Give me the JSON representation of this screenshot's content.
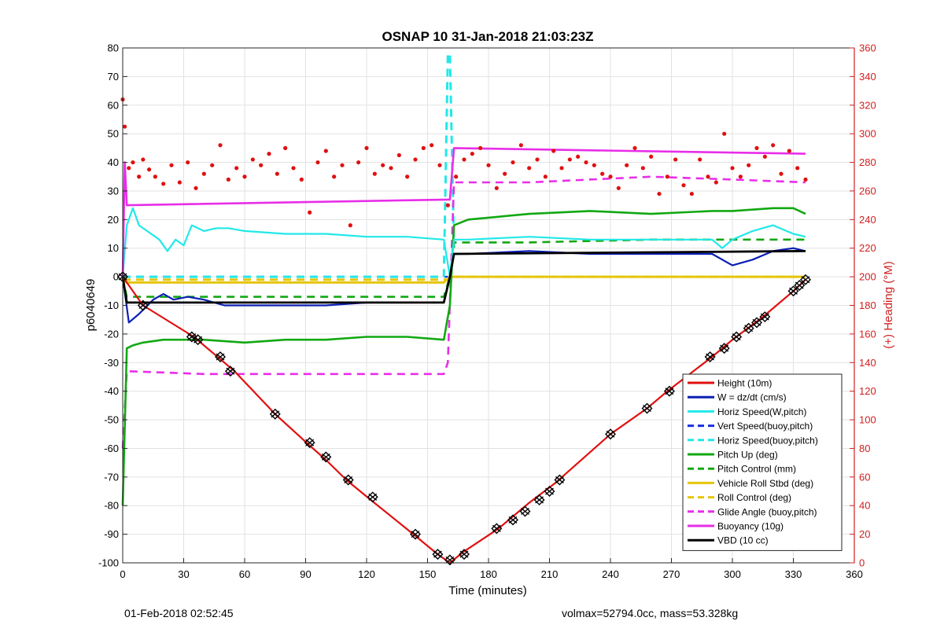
{
  "chart_data": {
    "type": "line",
    "title": "OSNAP 10 31-Jan-2018 21:03:23Z",
    "xlabel": "Time (minutes)",
    "ylabel": "p6040649",
    "y2label": "(+) Heading (°M)",
    "xlim": [
      0,
      360
    ],
    "ylim": [
      -100,
      80
    ],
    "y2lim": [
      0,
      360
    ],
    "xticks": [
      0,
      30,
      60,
      90,
      120,
      150,
      180,
      210,
      240,
      270,
      300,
      330,
      360
    ],
    "yticks": [
      -100,
      -90,
      -80,
      -70,
      -60,
      -50,
      -40,
      -30,
      -20,
      -10,
      0,
      10,
      20,
      30,
      40,
      50,
      60,
      70,
      80
    ],
    "y2ticks": [
      0,
      20,
      40,
      60,
      80,
      100,
      120,
      140,
      160,
      180,
      200,
      220,
      240,
      260,
      280,
      300,
      320,
      340,
      360
    ],
    "grid": true,
    "legend_position": "bottom-right",
    "colors": {
      "height": "#e01010",
      "w": "#0a1fb4",
      "horiz": "#22e8e8",
      "vert_dash": "#1a2ee0",
      "horiz_dash": "#22e8e8",
      "pitch": "#12a812",
      "pitch_ctrl": "#12a812",
      "roll": "#e6c50c",
      "roll_ctrl": "#e6c50c",
      "glide": "#e82ee8",
      "buoy": "#e82ee8",
      "vbd": "#000000",
      "heading": "#e01010",
      "right_axis": "#d02020"
    },
    "series": [
      {
        "name": "Height (10m)",
        "style": "solid",
        "x": [
          0,
          10,
          35,
          55,
          75,
          92,
          100,
          110,
          122,
          143,
          155,
          161,
          168,
          185,
          200,
          213,
          240,
          258,
          268,
          290,
          300,
          315,
          330,
          336
        ],
        "y": [
          0,
          -10,
          -21,
          -33,
          -48,
          -59,
          -64,
          -71,
          -78,
          -90,
          -97,
          -100,
          -96,
          -88,
          -79,
          -72,
          -55,
          -46,
          -40,
          -28,
          -22,
          -14,
          -5,
          -1
        ]
      },
      {
        "name": "W = dz/dt (cm/s)",
        "style": "solid",
        "x": [
          0,
          3,
          8,
          15,
          20,
          25,
          32,
          40,
          50,
          60,
          80,
          100,
          120,
          140,
          158,
          161,
          163,
          170,
          200,
          230,
          260,
          290,
          300,
          310,
          320,
          330,
          336
        ],
        "y": [
          0,
          -16,
          -13,
          -8,
          -6,
          -8,
          -7,
          -8,
          -10,
          -10,
          -10,
          -10,
          -9,
          -9,
          -9,
          0,
          8,
          8,
          9,
          8,
          8,
          8,
          4,
          6,
          9,
          10,
          9
        ]
      },
      {
        "name": "Horiz Speed(W,pitch)",
        "style": "solid",
        "x": [
          0,
          2,
          5,
          8,
          12,
          18,
          22,
          26,
          30,
          34,
          40,
          46,
          52,
          60,
          80,
          100,
          120,
          140,
          158,
          161,
          163,
          170,
          200,
          230,
          260,
          290,
          295,
          300,
          310,
          320,
          330,
          336
        ],
        "y": [
          0,
          18,
          24,
          18,
          16,
          13,
          9,
          13,
          11,
          18,
          16,
          17,
          17,
          16,
          15,
          15,
          14,
          14,
          13,
          0,
          13,
          13,
          14,
          13,
          13,
          13,
          10,
          13,
          16,
          18,
          15,
          14
        ]
      },
      {
        "name": "Vert Speed(buoy,pitch)",
        "style": "dashed",
        "x": [
          0,
          160
        ],
        "y": [
          0,
          0
        ]
      },
      {
        "name": "Horiz Speed(buoy,pitch)",
        "style": "dashed",
        "x": [
          0,
          158,
          160,
          161,
          163
        ],
        "y": [
          0,
          0,
          78,
          78,
          10
        ]
      },
      {
        "name": "Pitch Up (deg)",
        "style": "solid",
        "x": [
          0,
          2,
          5,
          10,
          20,
          40,
          60,
          80,
          100,
          120,
          140,
          158,
          161,
          163,
          170,
          200,
          230,
          260,
          290,
          300,
          320,
          330,
          336
        ],
        "y": [
          -80,
          -25,
          -24,
          -23,
          -22,
          -22,
          -23,
          -22,
          -22,
          -21,
          -21,
          -22,
          -10,
          18,
          20,
          22,
          23,
          22,
          23,
          23,
          24,
          24,
          22
        ]
      },
      {
        "name": "Pitch Control (mm)",
        "style": "dashed",
        "x": [
          0,
          2,
          60,
          120,
          158,
          161,
          163,
          200,
          260,
          300,
          336
        ],
        "y": [
          0,
          -7,
          -7,
          -7,
          -7,
          0,
          12,
          12,
          13,
          13,
          13
        ]
      },
      {
        "name": "Vehicle Roll Stbd (deg)",
        "style": "solid",
        "x": [
          0,
          2,
          30,
          60,
          90,
          120,
          158,
          161,
          163,
          200,
          260,
          290,
          300,
          336
        ],
        "y": [
          0,
          -2,
          -2,
          -2,
          -2,
          -2,
          -2,
          0,
          0,
          0,
          0,
          0,
          0,
          0
        ]
      },
      {
        "name": "Roll Control (deg)",
        "style": "dashed",
        "x": [
          0,
          160,
          161,
          336
        ],
        "y": [
          -1,
          -1,
          0,
          0
        ]
      },
      {
        "name": "Glide Angle (buoy,pitch)",
        "style": "dashed",
        "x": [
          0,
          2,
          40,
          60,
          100,
          140,
          158,
          160,
          163,
          200,
          260,
          300,
          336
        ],
        "y": [
          -60,
          -33,
          -34,
          -34,
          -34,
          -34,
          -34,
          -30,
          33,
          33,
          35,
          34,
          33
        ]
      },
      {
        "name": "Buoyancy (10g)",
        "style": "solid",
        "x": [
          0,
          1,
          2,
          160,
          161,
          163,
          336
        ],
        "y": [
          0,
          40,
          25,
          27,
          27,
          45,
          43
        ]
      },
      {
        "name": "VBD (10 cc)",
        "style": "solid",
        "x": [
          0,
          2,
          158,
          161,
          163,
          336
        ],
        "y": [
          0,
          -9,
          -9,
          0,
          8,
          9
        ]
      }
    ],
    "heading_points": {
      "axis": "right",
      "color": "#e01010",
      "x": [
        0,
        1,
        3,
        5,
        8,
        10,
        13,
        16,
        20,
        24,
        28,
        32,
        36,
        40,
        44,
        48,
        52,
        56,
        60,
        64,
        68,
        72,
        76,
        80,
        84,
        88,
        92,
        96,
        100,
        104,
        108,
        112,
        116,
        120,
        124,
        128,
        132,
        136,
        140,
        144,
        148,
        152,
        156,
        160,
        164,
        168,
        172,
        176,
        180,
        184,
        188,
        192,
        196,
        200,
        204,
        208,
        212,
        216,
        220,
        224,
        228,
        232,
        236,
        240,
        244,
        248,
        252,
        256,
        260,
        264,
        268,
        272,
        276,
        280,
        284,
        288,
        292,
        296,
        300,
        304,
        308,
        312,
        316,
        320,
        324,
        328,
        332,
        336
      ],
      "y": [
        324,
        305,
        276,
        280,
        270,
        282,
        275,
        270,
        265,
        278,
        266,
        280,
        262,
        272,
        278,
        292,
        268,
        276,
        270,
        282,
        278,
        286,
        272,
        290,
        276,
        268,
        245,
        280,
        288,
        270,
        278,
        236,
        280,
        290,
        272,
        278,
        276,
        285,
        270,
        282,
        290,
        292,
        278,
        250,
        270,
        282,
        286,
        290,
        278,
        262,
        272,
        280,
        292,
        276,
        282,
        270,
        288,
        276,
        282,
        284,
        280,
        278,
        272,
        270,
        262,
        278,
        290,
        276,
        284,
        258,
        270,
        282,
        264,
        258,
        282,
        270,
        266,
        300,
        276,
        270,
        278,
        290,
        284,
        292,
        272,
        288,
        276,
        268
      ]
    },
    "zero_vbd_markers": {
      "x": [
        0,
        10,
        34,
        37,
        48,
        53,
        75,
        92,
        100,
        111,
        123,
        144,
        155,
        161,
        168,
        184,
        192,
        198,
        205,
        210,
        215,
        240,
        258,
        269,
        289,
        296,
        302,
        308,
        312,
        316,
        330,
        333,
        336
      ],
      "y": [
        0,
        -10,
        -21,
        -22,
        -28,
        -33,
        -48,
        -58,
        -63,
        -71,
        -77,
        -90,
        -97,
        -99,
        -97,
        -88,
        -85,
        -82,
        -78,
        -75,
        -71,
        -55,
        -46,
        -40,
        -28,
        -25,
        -21,
        -18,
        -16,
        -14,
        -5,
        -3,
        -1
      ]
    }
  },
  "footer": {
    "left": "01-Feb-2018 02:52:45",
    "right": "volmax=52794.0cc, mass=53.328kg"
  }
}
